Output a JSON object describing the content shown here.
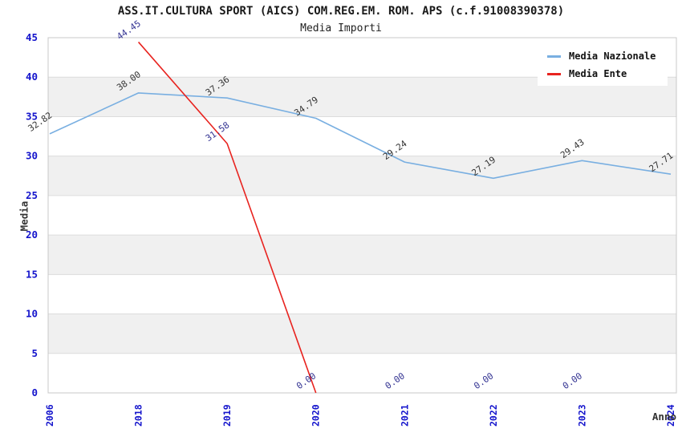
{
  "chart_data": {
    "type": "line",
    "title": "ASS.IT.CULTURA SPORT (AICS) COM.REG.EM. ROM. APS (c.f.91008390378)",
    "subtitle": "Media Importi",
    "xlabel": "Anno",
    "ylabel": "Media",
    "categories": [
      "2006",
      "2018",
      "2019",
      "2020",
      "2021",
      "2022",
      "2023",
      "2024"
    ],
    "ylim": [
      0,
      45
    ],
    "ytick_step": 5,
    "grid": true,
    "band_shading": true,
    "legend_position": "top-right",
    "series": [
      {
        "name": "Media Nazionale",
        "color": "#79afe1",
        "label_color": "#333333",
        "values": [
          32.82,
          38.0,
          37.36,
          34.79,
          29.24,
          27.19,
          29.43,
          27.71
        ],
        "line_segment": [
          0,
          7
        ]
      },
      {
        "name": "Media Ente",
        "color": "#e8231f",
        "label_color": "#333392",
        "values": [
          null,
          44.45,
          31.58,
          0.0,
          0.0,
          0.0,
          0.0,
          null
        ],
        "line_segment": [
          1,
          3
        ]
      }
    ],
    "colors": {
      "tick_label": "#1414cc",
      "band_gray": "#f0f0f0",
      "grid_line": "#dcdcdc",
      "plot_border": "#c8c8c8",
      "axis_title": "#333333"
    }
  }
}
